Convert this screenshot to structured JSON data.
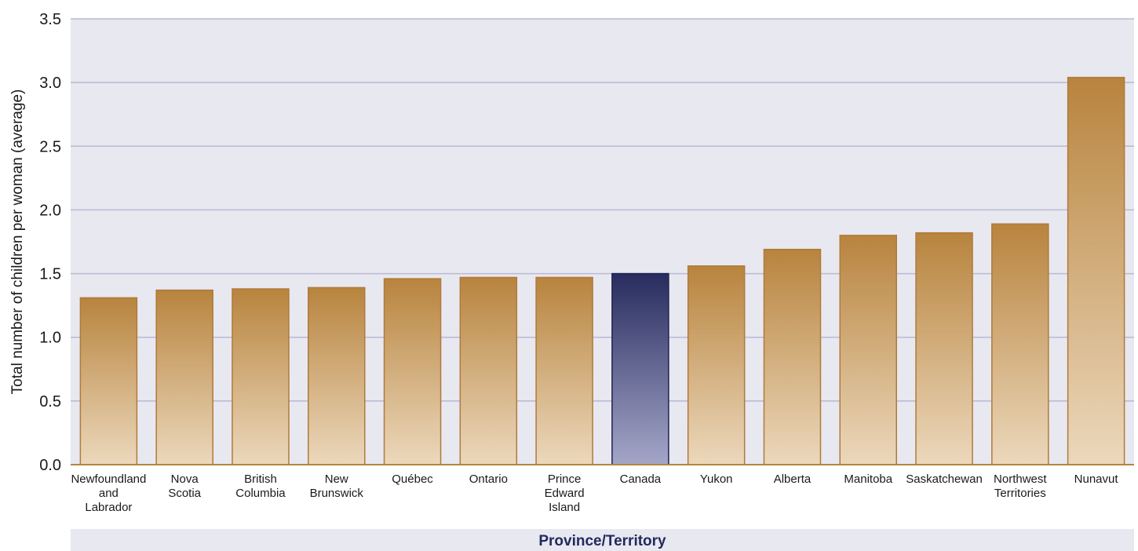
{
  "chart_data": {
    "type": "bar",
    "title": "",
    "ylabel": "Total number of children per woman (average)",
    "xlabel": "Province/Territory",
    "ylim": [
      0,
      3.5
    ],
    "yticks": [
      "0.0",
      "0.5",
      "1.0",
      "1.5",
      "2.0",
      "2.5",
      "3.0",
      "3.5"
    ],
    "grid": true,
    "categories": [
      [
        "Newfoundland",
        "and",
        "Labrador"
      ],
      [
        "Nova",
        "Scotia"
      ],
      [
        "British",
        "Columbia"
      ],
      [
        "New",
        "Brunswick"
      ],
      [
        "Québec"
      ],
      [
        "Ontario"
      ],
      [
        "Prince",
        "Edward",
        "Island"
      ],
      [
        "Canada"
      ],
      [
        "Yukon"
      ],
      [
        "Alberta"
      ],
      [
        "Manitoba"
      ],
      [
        "Saskatchewan"
      ],
      [
        "Northwest",
        "Territories"
      ],
      [
        "Nunavut"
      ]
    ],
    "values": [
      1.31,
      1.37,
      1.38,
      1.39,
      1.46,
      1.47,
      1.47,
      1.5,
      1.56,
      1.69,
      1.8,
      1.82,
      1.89,
      3.04
    ],
    "highlight_index": 7,
    "colors": {
      "bar_top": "#b8843e",
      "bar_bottom": "#ecd8bc",
      "bar_border": "#b07a3a",
      "highlight_top": "#282c5e",
      "highlight_bottom": "#a4a6c8",
      "highlight_border": "#1f2250",
      "plot_background": "#e8e8f0",
      "gridline": "#b9b9d4",
      "axis_line": "#b8843e",
      "xlabel_band": "#e8e8f0",
      "xlabel_text": "#222a5e"
    }
  }
}
